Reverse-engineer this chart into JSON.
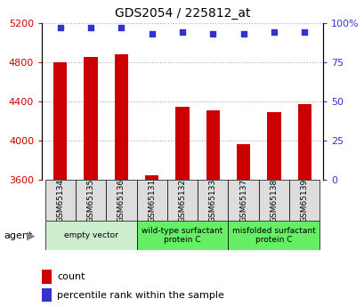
{
  "title": "GDS2054 / 225812_at",
  "samples": [
    "GSM65134",
    "GSM65135",
    "GSM65136",
    "GSM65131",
    "GSM65132",
    "GSM65133",
    "GSM65137",
    "GSM65138",
    "GSM65139"
  ],
  "counts": [
    4800,
    4850,
    4880,
    3640,
    4340,
    4310,
    3960,
    4290,
    4370
  ],
  "percentiles": [
    97,
    97,
    97,
    93,
    94,
    93,
    93,
    94,
    94
  ],
  "ylim_left": [
    3600,
    5200
  ],
  "ylim_right": [
    0,
    100
  ],
  "yticks_left": [
    3600,
    4000,
    4400,
    4800,
    5200
  ],
  "yticks_right": [
    0,
    25,
    50,
    75,
    100
  ],
  "yticklabels_right": [
    "0",
    "25",
    "50",
    "75",
    "100%"
  ],
  "bar_color": "#cc0000",
  "dot_color": "#3333cc",
  "groups": [
    {
      "label": "empty vector",
      "start": 0,
      "end": 3,
      "color": "#cceecc"
    },
    {
      "label": "wild-type surfactant\nprotein C",
      "start": 3,
      "end": 6,
      "color": "#66ee66"
    },
    {
      "label": "misfolded surfactant\nprotein C",
      "start": 6,
      "end": 9,
      "color": "#66ee66"
    }
  ],
  "tick_label_color": "#cc0000",
  "right_tick_color": "#3333cc",
  "grid_color": "#aaaaaa",
  "bg_color": "#ffffff",
  "sample_box_color": "#dddddd",
  "agent_label": "agent",
  "legend_count_label": "count",
  "legend_pct_label": "percentile rank within the sample",
  "bar_width": 0.45
}
